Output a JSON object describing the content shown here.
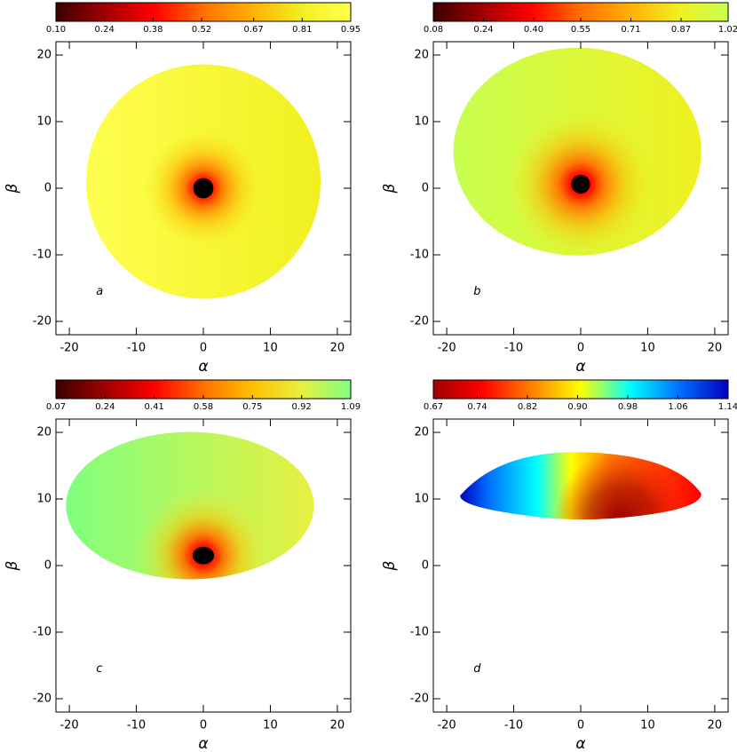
{
  "chart_data": [
    {
      "type": "image",
      "panel_label": "a",
      "xlabel": "α",
      "ylabel": "β",
      "xlim": [
        -22,
        22
      ],
      "ylim": [
        -22,
        22
      ],
      "xticks": [
        -20,
        -10,
        0,
        10,
        20
      ],
      "yticks": [
        -20,
        -10,
        0,
        10,
        20
      ],
      "colorbar": {
        "clim": [
          0.1,
          0.95
        ],
        "colormap": [
          "#3a0000",
          "#a00000",
          "#ff0000",
          "#ff7000",
          "#ffb000",
          "#f0f020",
          "#ffff50"
        ],
        "ticks": [
          {
            "value": 0.1,
            "label": "0.10"
          },
          0.24,
          0.38,
          0.52,
          0.67,
          0.81,
          0.95
        ]
      }
    },
    {
      "type": "image",
      "panel_label": "b",
      "xlabel": "α",
      "ylabel": "β",
      "xlim": [
        -22,
        22
      ],
      "ylim": [
        -22,
        22
      ],
      "xticks": [
        -20,
        -10,
        0,
        10,
        20
      ],
      "yticks": [
        -20,
        -10,
        0,
        10,
        20
      ],
      "colorbar": {
        "clim": [
          0.08,
          1.02
        ],
        "colormap": [
          "#3a0000",
          "#a00000",
          "#ff0000",
          "#ff7000",
          "#ffb000",
          "#f0f020",
          "#c8ff50"
        ],
        "ticks": [
          0.08,
          0.24,
          {
            "value": 0.4,
            "label": "0.40"
          },
          0.55,
          0.71,
          0.87,
          1.02
        ]
      }
    },
    {
      "type": "image",
      "panel_label": "c",
      "xlabel": "α",
      "ylabel": "β",
      "xlim": [
        -22,
        22
      ],
      "ylim": [
        -22,
        22
      ],
      "xticks": [
        -20,
        -10,
        0,
        10,
        20
      ],
      "yticks": [
        -20,
        -10,
        0,
        10,
        20
      ],
      "colorbar": {
        "clim": [
          0.07,
          1.09
        ],
        "colormap": [
          "#3a0000",
          "#a00000",
          "#ff0000",
          "#ff7000",
          "#ffc000",
          "#e8f040",
          "#80ff80"
        ],
        "ticks": [
          0.07,
          0.24,
          0.41,
          0.58,
          0.75,
          0.92,
          1.09
        ]
      }
    },
    {
      "type": "image",
      "panel_label": "d",
      "xlabel": "α",
      "ylabel": "β",
      "xlim": [
        -22,
        22
      ],
      "ylim": [
        -22,
        22
      ],
      "xticks": [
        -20,
        -10,
        0,
        10,
        20
      ],
      "yticks": [
        -20,
        -10,
        0,
        10,
        20
      ],
      "colorbar": {
        "clim": [
          0.67,
          1.14
        ],
        "colormap": [
          "#a00000",
          "#ff0000",
          "#ff8000",
          "#ffff00",
          "#00ffff",
          "#0070ff",
          "#0000c0"
        ],
        "ticks": [
          0.67,
          0.74,
          0.82,
          {
            "value": 0.9,
            "label": "0.90"
          },
          0.98,
          1.06,
          1.14
        ]
      }
    }
  ]
}
